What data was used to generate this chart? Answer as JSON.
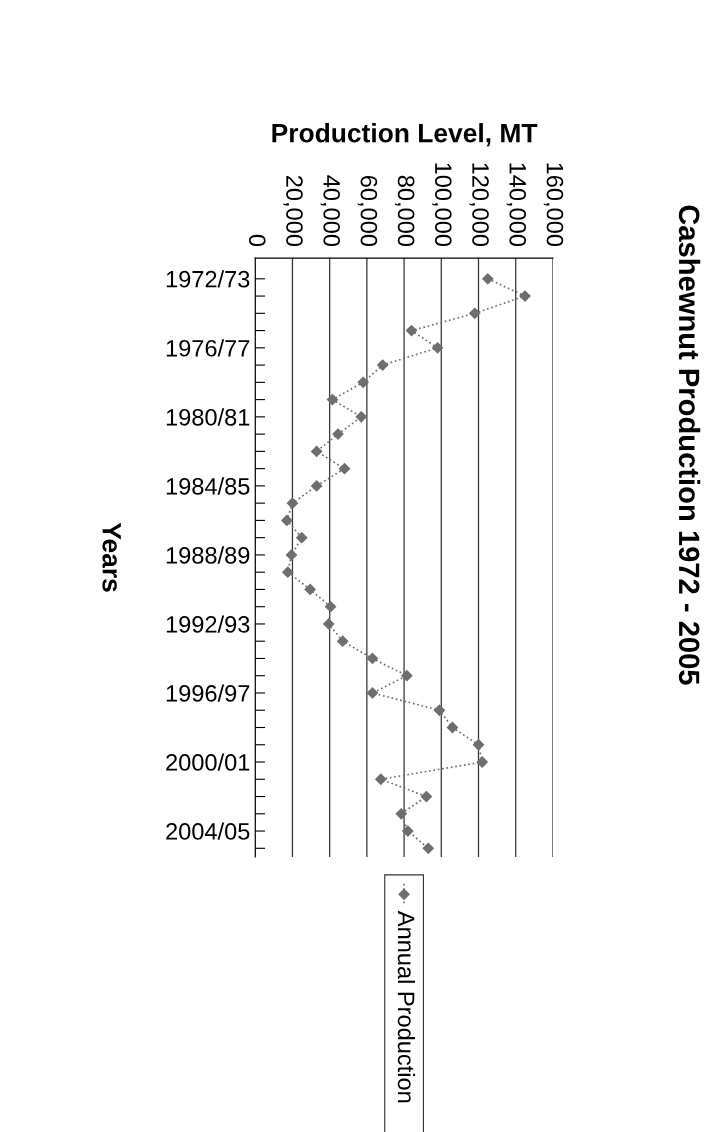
{
  "chart_data": {
    "type": "line",
    "orientation": "horizontal",
    "title": "Cashewnut Production 1972 - 2005",
    "xlabel": "Production Level, MT",
    "ylabel": "Years",
    "categories": [
      "1972/73",
      null,
      null,
      null,
      "1976/77",
      null,
      null,
      null,
      "1980/81",
      null,
      null,
      null,
      "1984/85",
      null,
      null,
      null,
      "1988/89",
      null,
      null,
      null,
      "1992/93",
      null,
      null,
      null,
      "1996/97",
      null,
      null,
      null,
      "2000/01",
      null,
      null,
      null,
      "2004/05",
      null
    ],
    "series": [
      {
        "name": "Annual Production",
        "color": "#6e6e6e",
        "values": [
          125000,
          145000,
          118000,
          84000,
          98000,
          68500,
          58000,
          41500,
          57000,
          44500,
          33000,
          48000,
          33000,
          20000,
          17000,
          25000,
          19500,
          17500,
          29500,
          40500,
          39500,
          47000,
          63000,
          81500,
          63000,
          99000,
          106000,
          120000,
          122000,
          67500,
          92000,
          78500,
          82000,
          93000
        ]
      }
    ],
    "xlim": [
      0,
      160000
    ],
    "xticks": [
      {
        "value": 0,
        "label": "0"
      },
      {
        "value": 20000,
        "label": "20,000"
      },
      {
        "value": 40000,
        "label": "40,000"
      },
      {
        "value": 60000,
        "label": "60,000"
      },
      {
        "value": 80000,
        "label": "80,000"
      },
      {
        "value": 100000,
        "label": "100,000"
      },
      {
        "value": 120000,
        "label": "120,000"
      },
      {
        "value": 140000,
        "label": "140,000"
      },
      {
        "value": 160000,
        "label": "160,000"
      }
    ],
    "grid": "x",
    "legend": "bottom",
    "marker": "diamond",
    "line_style": "dotted"
  }
}
